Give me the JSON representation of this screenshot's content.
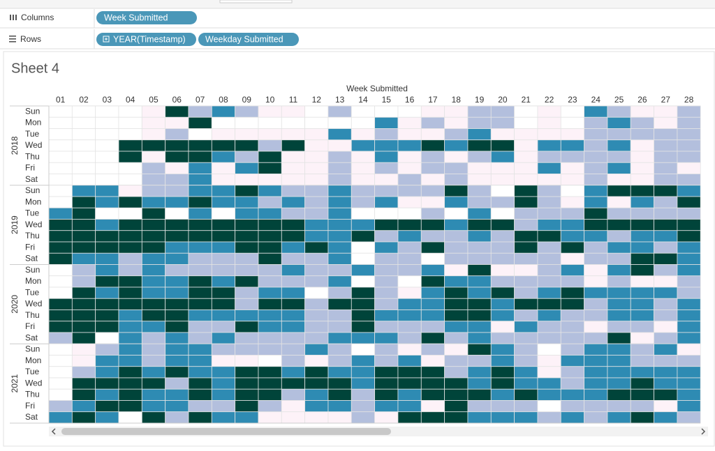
{
  "toolbar": {
    "columns_label": "Columns",
    "columns_pills": [
      "Week Submitted"
    ],
    "rows_label": "Rows",
    "rows_pills": [
      "YEAR(Timestamp)",
      "Weekday Submitted"
    ]
  },
  "chart_data": {
    "type": "heatmap",
    "title": "Sheet 4",
    "x_label": "Week Submitted",
    "categories": [
      "01",
      "02",
      "03",
      "04",
      "05",
      "06",
      "07",
      "08",
      "09",
      "10",
      "11",
      "12",
      "13",
      "14",
      "15",
      "16",
      "17",
      "18",
      "19",
      "20",
      "21",
      "22",
      "23",
      "24",
      "25",
      "26",
      "27",
      "28"
    ],
    "colors": [
      "#ffffff",
      "#fdf2f8",
      "#b3bfdd",
      "#2e8bb3",
      "#00443a"
    ],
    "years": [
      {
        "name": "2018",
        "days": [
          "Sun",
          "Mon",
          "Tue",
          "Wed",
          "Thu",
          "Fri",
          "Sat"
        ],
        "values": [
          [
            0,
            0,
            0,
            0,
            1,
            4,
            2,
            3,
            2,
            1,
            1,
            0,
            2,
            0,
            0,
            0,
            1,
            1,
            2,
            2,
            0,
            1,
            0,
            3,
            2,
            1,
            1,
            2
          ],
          [
            0,
            0,
            0,
            0,
            1,
            1,
            4,
            0,
            0,
            0,
            0,
            0,
            0,
            0,
            3,
            1,
            2,
            1,
            2,
            2,
            0,
            1,
            0,
            2,
            3,
            2,
            1,
            2
          ],
          [
            0,
            0,
            0,
            0,
            1,
            2,
            0,
            1,
            1,
            1,
            1,
            1,
            3,
            1,
            2,
            1,
            1,
            2,
            3,
            1,
            1,
            1,
            1,
            2,
            2,
            2,
            2,
            2
          ],
          [
            0,
            0,
            0,
            4,
            4,
            4,
            4,
            4,
            4,
            2,
            4,
            1,
            1,
            3,
            3,
            3,
            4,
            3,
            4,
            4,
            1,
            3,
            3,
            2,
            3,
            1,
            2,
            2
          ],
          [
            0,
            0,
            0,
            4,
            1,
            4,
            4,
            3,
            2,
            4,
            1,
            1,
            2,
            1,
            3,
            1,
            2,
            1,
            2,
            3,
            1,
            2,
            2,
            2,
            2,
            1,
            2,
            2
          ],
          [
            0,
            0,
            0,
            0,
            2,
            1,
            3,
            1,
            3,
            4,
            1,
            1,
            2,
            1,
            2,
            1,
            2,
            2,
            1,
            1,
            1,
            3,
            1,
            2,
            3,
            1,
            2,
            1
          ],
          [
            0,
            0,
            0,
            0,
            2,
            2,
            3,
            1,
            1,
            1,
            1,
            1,
            2,
            1,
            1,
            2,
            1,
            2,
            1,
            1,
            1,
            1,
            1,
            2,
            1,
            1,
            2,
            2
          ]
        ]
      },
      {
        "name": "2019",
        "days": [
          "Sun",
          "Mon",
          "Tue",
          "Wed",
          "Thu",
          "Fri",
          "Sat"
        ],
        "values": [
          [
            0,
            3,
            3,
            1,
            2,
            2,
            3,
            3,
            4,
            3,
            2,
            2,
            3,
            2,
            2,
            2,
            2,
            4,
            2,
            0,
            4,
            2,
            0,
            3,
            4,
            4,
            4,
            3
          ],
          [
            0,
            4,
            3,
            4,
            3,
            3,
            4,
            3,
            3,
            2,
            3,
            2,
            3,
            2,
            3,
            1,
            1,
            3,
            2,
            2,
            4,
            2,
            1,
            3,
            1,
            3,
            2,
            4
          ],
          [
            3,
            4,
            0,
            0,
            4,
            0,
            3,
            0,
            3,
            3,
            2,
            2,
            3,
            0,
            0,
            0,
            2,
            0,
            3,
            0,
            2,
            2,
            2,
            4,
            2,
            2,
            2,
            2
          ],
          [
            4,
            4,
            3,
            4,
            4,
            4,
            4,
            4,
            4,
            4,
            4,
            3,
            3,
            3,
            4,
            4,
            4,
            3,
            4,
            4,
            2,
            3,
            3,
            4,
            4,
            4,
            4,
            4
          ],
          [
            4,
            4,
            4,
            4,
            4,
            4,
            4,
            4,
            4,
            4,
            4,
            3,
            3,
            4,
            2,
            3,
            2,
            2,
            3,
            2,
            4,
            4,
            3,
            3,
            2,
            3,
            3,
            4
          ],
          [
            4,
            4,
            4,
            4,
            4,
            3,
            3,
            3,
            4,
            4,
            3,
            4,
            3,
            0,
            3,
            2,
            4,
            2,
            2,
            2,
            4,
            2,
            4,
            2,
            3,
            3,
            2,
            3
          ],
          [
            4,
            3,
            3,
            2,
            3,
            3,
            2,
            2,
            2,
            4,
            2,
            2,
            3,
            0,
            2,
            2,
            0,
            2,
            2,
            2,
            2,
            2,
            1,
            2,
            2,
            4,
            4,
            3
          ]
        ]
      },
      {
        "name": "2020",
        "days": [
          "Sun",
          "Mon",
          "Tue",
          "Wed",
          "Thu",
          "Fri",
          "Sat"
        ],
        "values": [
          [
            0,
            2,
            3,
            2,
            3,
            2,
            2,
            2,
            2,
            2,
            3,
            2,
            2,
            3,
            2,
            2,
            3,
            1,
            4,
            1,
            1,
            2,
            3,
            1,
            3,
            4,
            2,
            3
          ],
          [
            0,
            2,
            4,
            4,
            3,
            3,
            4,
            3,
            4,
            2,
            2,
            2,
            3,
            0,
            2,
            0,
            4,
            3,
            3,
            2,
            2,
            2,
            2,
            1,
            2,
            1,
            1,
            2
          ],
          [
            0,
            4,
            3,
            4,
            3,
            3,
            4,
            4,
            2,
            3,
            3,
            0,
            2,
            4,
            2,
            1,
            3,
            4,
            3,
            4,
            2,
            3,
            4,
            3,
            3,
            3,
            3,
            2
          ],
          [
            4,
            4,
            4,
            4,
            4,
            4,
            4,
            4,
            2,
            4,
            4,
            2,
            4,
            4,
            2,
            3,
            3,
            4,
            4,
            3,
            4,
            4,
            4,
            2,
            3,
            3,
            2,
            3
          ],
          [
            4,
            4,
            4,
            3,
            4,
            4,
            3,
            3,
            3,
            3,
            3,
            2,
            2,
            4,
            3,
            3,
            3,
            4,
            4,
            3,
            2,
            3,
            2,
            2,
            3,
            3,
            2,
            3
          ],
          [
            4,
            4,
            4,
            3,
            3,
            4,
            2,
            2,
            4,
            3,
            3,
            2,
            2,
            4,
            2,
            2,
            2,
            3,
            3,
            1,
            3,
            2,
            2,
            1,
            2,
            2,
            1,
            3
          ],
          [
            2,
            4,
            0,
            3,
            2,
            3,
            2,
            3,
            2,
            2,
            2,
            2,
            3,
            3,
            3,
            2,
            4,
            2,
            3,
            2,
            2,
            2,
            2,
            2,
            4,
            1,
            2,
            3
          ]
        ]
      },
      {
        "name": "2021",
        "days": [
          "Sun",
          "Mon",
          "Tue",
          "Wed",
          "Thu",
          "Fri",
          "Sat"
        ],
        "values": [
          [
            0,
            1,
            2,
            3,
            2,
            3,
            3,
            2,
            2,
            2,
            2,
            3,
            2,
            0,
            2,
            1,
            2,
            1,
            4,
            3,
            2,
            0,
            2,
            3,
            3,
            2,
            3,
            1
          ],
          [
            0,
            1,
            3,
            3,
            2,
            3,
            3,
            1,
            1,
            0,
            2,
            1,
            2,
            3,
            2,
            3,
            1,
            2,
            2,
            3,
            2,
            1,
            3,
            3,
            3,
            2,
            2,
            2
          ],
          [
            0,
            2,
            3,
            4,
            3,
            4,
            3,
            3,
            4,
            4,
            3,
            4,
            3,
            3,
            4,
            4,
            4,
            2,
            3,
            4,
            3,
            1,
            2,
            3,
            3,
            3,
            3,
            3
          ],
          [
            0,
            4,
            4,
            4,
            4,
            2,
            4,
            3,
            4,
            4,
            4,
            4,
            4,
            3,
            4,
            4,
            4,
            4,
            3,
            4,
            3,
            3,
            2,
            3,
            3,
            4,
            3,
            3
          ],
          [
            0,
            4,
            3,
            4,
            3,
            3,
            4,
            3,
            4,
            4,
            2,
            3,
            4,
            2,
            4,
            3,
            4,
            4,
            4,
            3,
            4,
            3,
            3,
            3,
            4,
            4,
            4,
            3
          ],
          [
            2,
            3,
            4,
            4,
            3,
            3,
            2,
            2,
            4,
            2,
            1,
            3,
            3,
            2,
            3,
            3,
            1,
            4,
            2,
            2,
            2,
            0,
            2,
            2,
            2,
            2,
            1,
            3
          ],
          [
            3,
            4,
            3,
            0,
            4,
            2,
            4,
            3,
            3,
            1,
            1,
            1,
            1,
            2,
            1,
            4,
            4,
            4,
            3,
            3,
            3,
            2,
            3,
            2,
            3,
            4,
            3,
            2
          ]
        ]
      }
    ]
  }
}
